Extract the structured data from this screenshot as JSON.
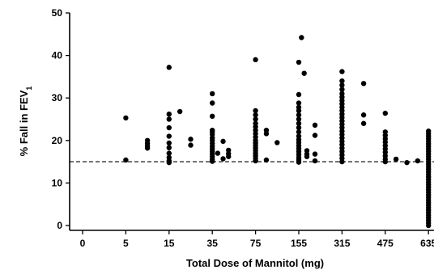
{
  "chart_data": {
    "type": "scatter",
    "title": "",
    "xlabel": "Total Dose of Mannitol (mg)",
    "ylabel": {
      "main": "% Fall in FEV",
      "subscript": "1"
    },
    "x_ticks": [
      0,
      5,
      15,
      35,
      75,
      155,
      315,
      475,
      635
    ],
    "y_ticks": [
      0,
      10,
      20,
      30,
      40,
      50
    ],
    "ylim": [
      0,
      50
    ],
    "threshold": 15,
    "threshold_style": "dashed",
    "grid": false,
    "legend": "none",
    "point_color": "#000000",
    "points": [
      {
        "x": 5,
        "y": [
          25.3,
          15.4
        ]
      },
      {
        "x": 10,
        "y": [
          20,
          19.3,
          18.7,
          18.2
        ]
      },
      {
        "x": 15,
        "y": [
          37.2,
          26.2,
          25,
          23,
          21,
          19.4,
          18.3,
          17,
          16,
          15.2,
          14.8
        ]
      },
      {
        "x": 20,
        "y": [
          26.8
        ]
      },
      {
        "x": 25,
        "y": [
          20.3,
          18.9
        ]
      },
      {
        "x": 35,
        "y": [
          31,
          28.8,
          25.7,
          22.4,
          22,
          21.4,
          20.6,
          20,
          19.3,
          18.6,
          18,
          17.4,
          16.8,
          16.2,
          15.6,
          15.1
        ]
      },
      {
        "x": 40,
        "y": [
          17
        ]
      },
      {
        "x": 45,
        "y": [
          19.8,
          15.7
        ]
      },
      {
        "x": 50,
        "y": [
          17.7,
          16.9,
          16.2
        ]
      },
      {
        "x": 75,
        "y": [
          39,
          27,
          26,
          25,
          24,
          23.2,
          22.4,
          21.6,
          20.8,
          20,
          19.4,
          18.8,
          18.2,
          17.6,
          17,
          16.4,
          15.8,
          15.2
        ]
      },
      {
        "x": 95,
        "y": [
          22.4,
          21.6,
          15.4
        ]
      },
      {
        "x": 115,
        "y": [
          19.5
        ]
      },
      {
        "x": 155,
        "y": [
          38.4,
          30.8,
          28.8,
          27.8,
          27,
          26,
          25,
          24,
          23,
          22,
          21,
          20.2,
          19.5,
          18.8,
          18.1,
          17.4,
          16.7,
          16,
          15.4,
          14.9
        ]
      },
      {
        "x": 165,
        "y": [
          44.2
        ]
      },
      {
        "x": 175,
        "y": [
          35.8
        ]
      },
      {
        "x": 185,
        "y": [
          17.6,
          16.8,
          16.2
        ]
      },
      {
        "x": 215,
        "y": [
          23.6,
          21.2,
          16.8,
          15.2
        ]
      },
      {
        "x": 315,
        "y": [
          36.2,
          34,
          33,
          32,
          31,
          30.2,
          29.4,
          28.6,
          27.8,
          27,
          26.2,
          25.4,
          24.6,
          23.8,
          23,
          22.2,
          21.4,
          20.6,
          19.8,
          19,
          18.2,
          17.4,
          16.6,
          15.8,
          15
        ]
      },
      {
        "x": 395,
        "y": [
          33.4,
          26,
          24
        ]
      },
      {
        "x": 475,
        "y": [
          26.4,
          22,
          21.2,
          20.4,
          19.6,
          18.8,
          18,
          17.2,
          16.4,
          15.6,
          15
        ]
      },
      {
        "x": 515,
        "y": [
          15.6
        ]
      },
      {
        "x": 555,
        "y": [
          14.8
        ]
      },
      {
        "x": 595,
        "y": [
          15.2
        ]
      },
      {
        "x": 635,
        "y": [
          22.2,
          21.6,
          21,
          20.4,
          19.8,
          19.2,
          18.6,
          18,
          17.4,
          16.8,
          16.2,
          15.6,
          15,
          14.4,
          13.8,
          13.2,
          12.6,
          12,
          11.4,
          10.8,
          10.2,
          9.6,
          9,
          8.4,
          7.8,
          7.2,
          6.6,
          6,
          5.4,
          4.8,
          4.2,
          3.6,
          3,
          2.4,
          1.8,
          1.2,
          0.6,
          0
        ]
      }
    ]
  }
}
